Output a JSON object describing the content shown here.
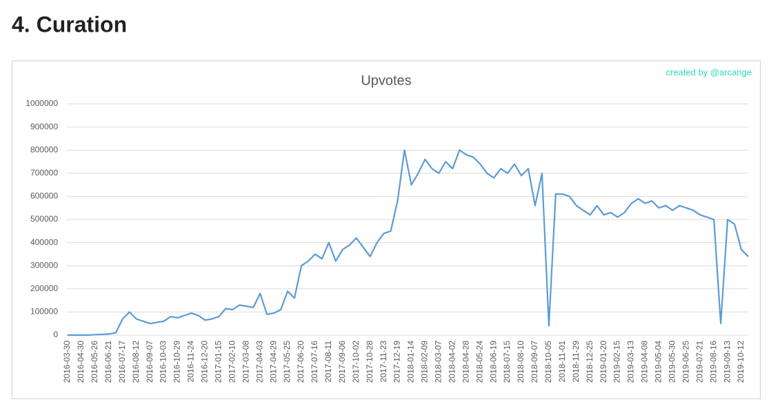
{
  "header": {
    "title": "4. Curation"
  },
  "chart_data": {
    "type": "line",
    "title": "Upvotes",
    "annotation": "created by @arcange",
    "categories": [
      "2016-03-30",
      null,
      "2016-04-30",
      null,
      "2016-05-26",
      null,
      "2016-06-21",
      null,
      "2016-07-17",
      null,
      "2016-08-12",
      null,
      "2016-09-07",
      null,
      "2016-10-03",
      null,
      "2016-10-29",
      null,
      "2016-11-24",
      null,
      "2016-12-20",
      null,
      "2017-01-15",
      null,
      "2017-02-10",
      null,
      "2017-03-08",
      null,
      "2017-04-03",
      null,
      "2017-04-29",
      null,
      "2017-05-25",
      null,
      "2017-06-20",
      null,
      "2017-07-16",
      null,
      "2017-08-11",
      null,
      "2017-09-06",
      null,
      "2017-10-02",
      null,
      "2017-10-28",
      null,
      "2017-11-23",
      null,
      "2017-12-19",
      null,
      "2018-01-14",
      null,
      "2018-02-09",
      null,
      "2018-03-07",
      null,
      "2018-04-02",
      null,
      "2018-04-28",
      null,
      "2018-05-24",
      null,
      "2018-06-19",
      null,
      "2018-07-15",
      null,
      "2018-08-10",
      null,
      "2018-09-07",
      null,
      "2018-10-05",
      null,
      "2018-11-01",
      null,
      "2018-11-29",
      null,
      "2018-12-25",
      null,
      "2019-01-20",
      null,
      "2019-02-15",
      null,
      "2019-03-13",
      null,
      "2019-04-08",
      null,
      "2019-05-04",
      null,
      "2019-05-30",
      null,
      "2019-06-25",
      null,
      "2019-07-21",
      null,
      "2019-08-16",
      null,
      "2019-09-13",
      null,
      "2019-10-12",
      null
    ],
    "values": [
      0,
      0,
      0,
      0,
      2000,
      3000,
      5000,
      10000,
      70000,
      100000,
      70000,
      60000,
      50000,
      55000,
      60000,
      80000,
      75000,
      85000,
      95000,
      85000,
      65000,
      70000,
      80000,
      115000,
      110000,
      130000,
      125000,
      120000,
      180000,
      90000,
      95000,
      110000,
      190000,
      160000,
      300000,
      320000,
      350000,
      330000,
      400000,
      320000,
      370000,
      390000,
      420000,
      380000,
      340000,
      400000,
      440000,
      450000,
      580000,
      800000,
      650000,
      700000,
      760000,
      720000,
      700000,
      750000,
      720000,
      800000,
      780000,
      770000,
      740000,
      700000,
      680000,
      720000,
      700000,
      740000,
      690000,
      720000,
      560000,
      700000,
      40000,
      610000,
      610000,
      600000,
      560000,
      540000,
      520000,
      560000,
      520000,
      530000,
      510000,
      530000,
      570000,
      590000,
      570000,
      580000,
      550000,
      560000,
      540000,
      560000,
      550000,
      540000,
      520000,
      510000,
      500000,
      50000,
      500000,
      480000,
      370000,
      340000
    ],
    "color": "#5b9bd5",
    "ylim": [
      0,
      1000000
    ],
    "yticks": [
      0,
      100000,
      200000,
      300000,
      400000,
      500000,
      600000,
      700000,
      800000,
      900000,
      1000000
    ],
    "grid": true
  }
}
